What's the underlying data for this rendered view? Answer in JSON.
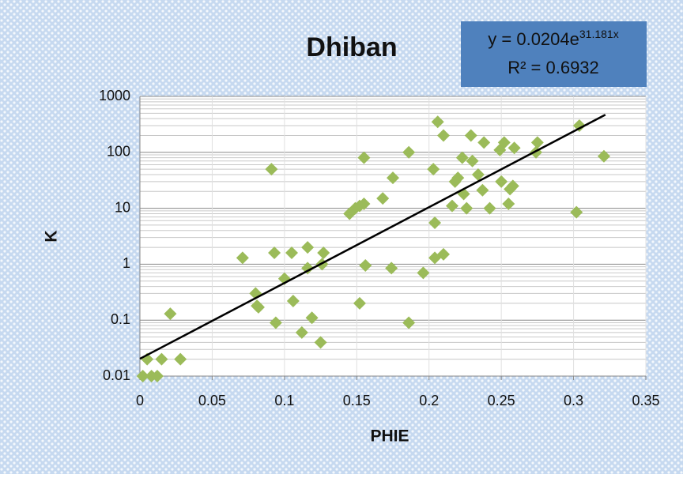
{
  "chart_data": {
    "type": "scatter",
    "title": "Dhiban",
    "equation": {
      "base": "y = 0.0204e",
      "exponent": "31.181x"
    },
    "r_squared": "R² = 0.6932",
    "xlabel": "PHIE",
    "ylabel": "K",
    "color": "#9bbb59",
    "x": [
      0.002,
      0.005,
      0.008,
      0.012,
      0.015,
      0.021,
      0.028,
      0.071,
      0.08,
      0.082,
      0.081,
      0.091,
      0.093,
      0.094,
      0.1,
      0.105,
      0.106,
      0.112,
      0.116,
      0.116,
      0.119,
      0.125,
      0.127,
      0.126,
      0.145,
      0.149,
      0.152,
      0.155,
      0.152,
      0.155,
      0.156,
      0.168,
      0.174,
      0.175,
      0.186,
      0.186,
      0.196,
      0.203,
      0.204,
      0.204,
      0.206,
      0.21,
      0.21,
      0.216,
      0.218,
      0.22,
      0.223,
      0.224,
      0.226,
      0.229,
      0.23,
      0.234,
      0.238,
      0.237,
      0.242,
      0.249,
      0.25,
      0.252,
      0.255,
      0.256,
      0.258,
      0.259,
      0.275,
      0.274,
      0.302,
      0.304,
      0.321
    ],
    "y": [
      0.01,
      0.02,
      0.01,
      0.01,
      0.02,
      0.13,
      0.02,
      1.3,
      0.3,
      0.17,
      0.18,
      50,
      1.6,
      0.09,
      0.55,
      1.6,
      0.22,
      0.06,
      2,
      0.85,
      0.11,
      0.04,
      1.6,
      1.0,
      8,
      10,
      11,
      12,
      0.2,
      80,
      0.95,
      15,
      0.85,
      35,
      0.09,
      100,
      0.7,
      50,
      5.5,
      1.3,
      350,
      1.5,
      200,
      11,
      30,
      35,
      80,
      18,
      10,
      200,
      70,
      40,
      150,
      21,
      10,
      110,
      30,
      150,
      12,
      22,
      25,
      120,
      150,
      100,
      8.5,
      300,
      85
    ],
    "trendline": {
      "x": [
        0,
        0.322
      ],
      "y": [
        0.0204,
        470
      ],
      "color": "#000000"
    },
    "xlim": [
      0,
      0.35
    ],
    "xticks": [
      0,
      0.05,
      0.1,
      0.15,
      0.2,
      0.25,
      0.3,
      0.35
    ],
    "ylim": [
      0.01,
      1000
    ],
    "yticks": [
      0.01,
      0.1,
      1,
      10,
      100,
      1000
    ],
    "log_y": true,
    "grid": true,
    "minor_grid": true
  }
}
